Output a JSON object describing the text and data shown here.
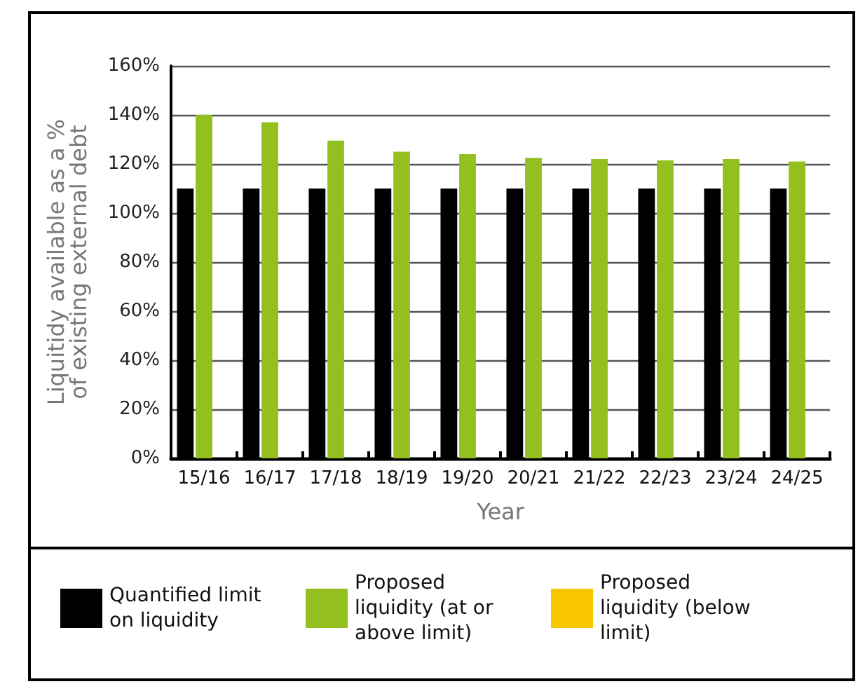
{
  "chart_data": {
    "type": "bar",
    "xlabel": "Year",
    "ylabel": "Liquitidy available as a % of existing external debt",
    "categories": [
      "15/16",
      "16/17",
      "17/18",
      "18/19",
      "19/20",
      "20/21",
      "21/22",
      "22/23",
      "23/24",
      "24/25"
    ],
    "series": [
      {
        "name": "Quantified limit on liquidity",
        "color": "#000000",
        "values": [
          110,
          110,
          110,
          110,
          110,
          110,
          110,
          110,
          110,
          110
        ]
      },
      {
        "name": "Proposed liquidity (at or above limit)",
        "color": "#93bf1f",
        "values": [
          140,
          137,
          129.5,
          125,
          124,
          122.5,
          122,
          121.5,
          122,
          121
        ]
      },
      {
        "name": "Proposed liquidity (below limit)",
        "color": "#f9c700",
        "values": [
          null,
          null,
          null,
          null,
          null,
          null,
          null,
          null,
          null,
          null
        ]
      }
    ],
    "ylim": [
      0,
      160
    ],
    "yticks": [
      {
        "value": 0,
        "label": "0%"
      },
      {
        "value": 20,
        "label": "20%"
      },
      {
        "value": 40,
        "label": "40%"
      },
      {
        "value": 60,
        "label": "60%"
      },
      {
        "value": 80,
        "label": "80%"
      },
      {
        "value": 100,
        "label": "100%"
      },
      {
        "value": 120,
        "label": "120%"
      },
      {
        "value": 140,
        "label": "140%"
      },
      {
        "value": 160,
        "label": "160%"
      }
    ],
    "grid": "y",
    "legend": "bottom"
  }
}
